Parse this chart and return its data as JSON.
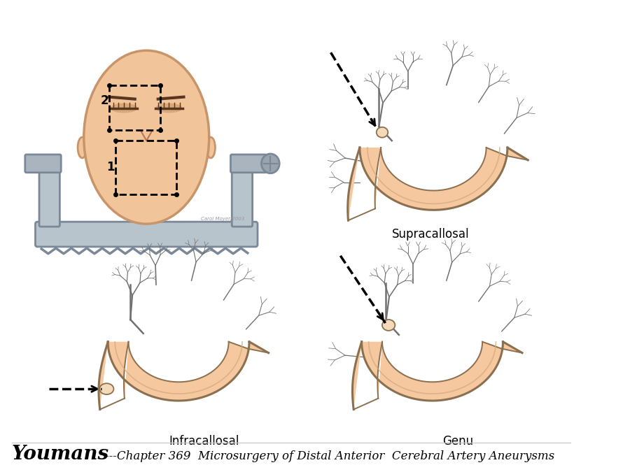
{
  "title_bold": "Youmans",
  "title_dashes": "---",
  "title_italic": "Chapter 369  Microsurgery of Distal Anterior  Cerebral Artery Aneurysms",
  "label_supracallosal": "Supracallosal",
  "label_infracallosal": "Infracallosal",
  "label_genu": "Genu",
  "bg_color": "#ffffff",
  "skin_fill": "#f2c49a",
  "skin_edge": "#c8956a",
  "artery_fill": "#f5c8a0",
  "artery_fill2": "#f0bc88",
  "artery_outline": "#8B7050",
  "artery_inner": "#d4a878",
  "vessel_color": "#707070",
  "frame_fill": "#b8c4cc",
  "frame_edge": "#7a8898",
  "text_color": "#000000",
  "arrow_color": "#111111"
}
